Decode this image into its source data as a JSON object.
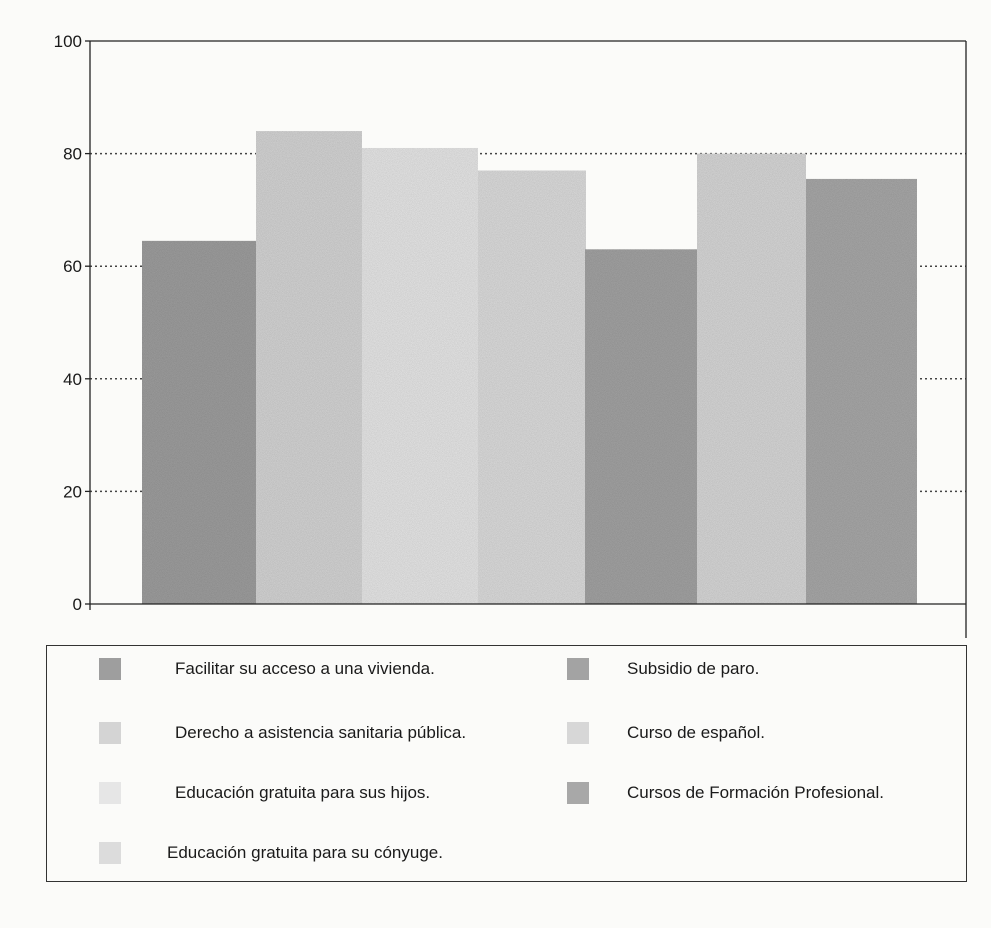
{
  "chart_data": {
    "type": "bar",
    "categories": [
      "Facilitar su acceso a una vivienda.",
      "Derecho a asistencia sanitaria pública.",
      "Educación gratuita para sus hijos.",
      "Educación gratuita para su cónyuge.",
      "Subsidio de paro.",
      "Curso de español.",
      "Cursos de Formación Profesional."
    ],
    "values": [
      64.5,
      84,
      81,
      77,
      63,
      80,
      75.5
    ],
    "title": "",
    "xlabel": "",
    "ylabel": "",
    "ylim": [
      0,
      100
    ],
    "yticks": [
      "0",
      "20",
      "40",
      "60",
      "80",
      "100"
    ],
    "grid": true,
    "legend_position": "bottom",
    "colors": [
      "#9e9e9e",
      "#d4d4d4",
      "#e6e6e6",
      "#dcdcdc",
      "#a3a3a3",
      "#d7d7d7",
      "#a8a8a8"
    ]
  }
}
